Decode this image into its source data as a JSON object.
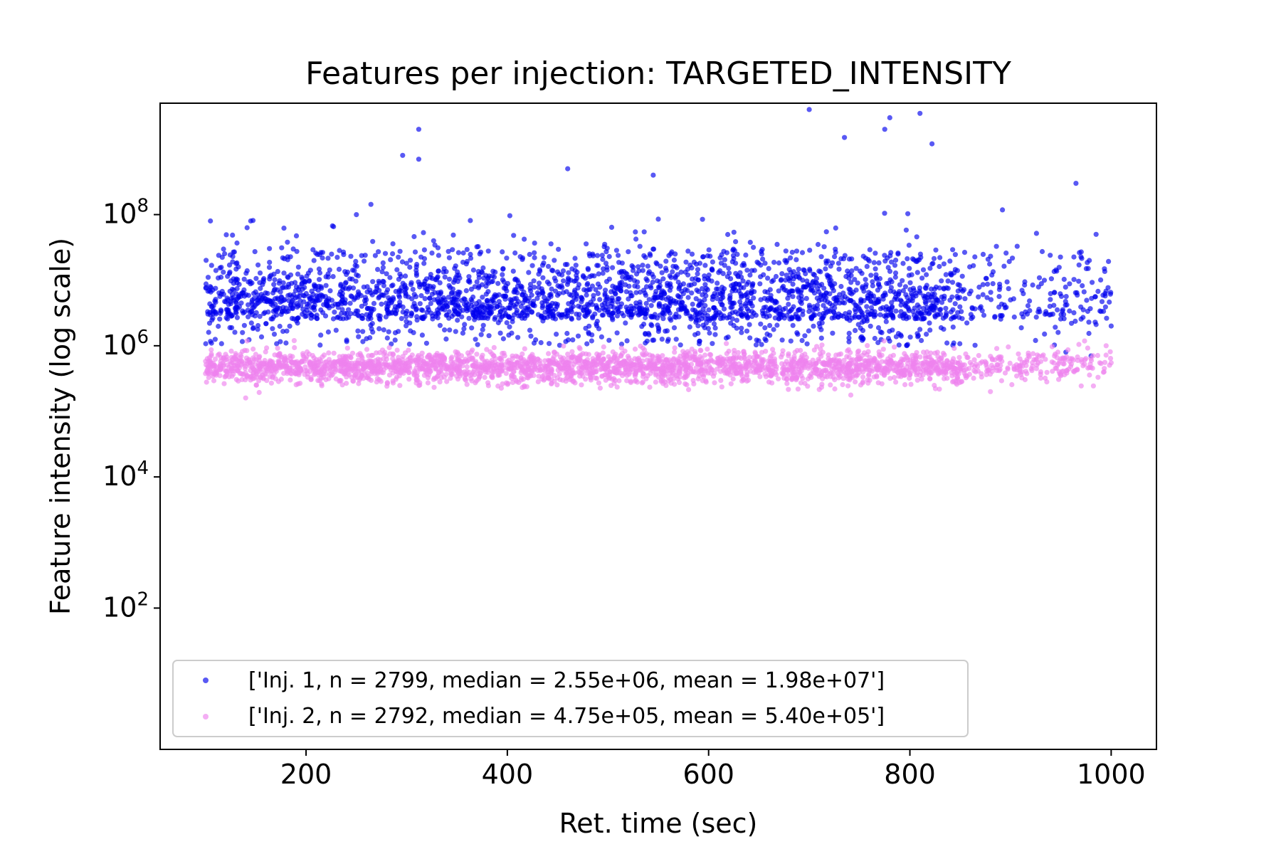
{
  "chart_data": {
    "type": "scatter",
    "title": "Features per injection: TARGETED_INTENSITY",
    "xlabel": "Ret. time (sec)",
    "ylabel": "Feature intensity (log scale)",
    "xlim": [
      55,
      1045
    ],
    "ylim": [
      0.7,
      5000000000
    ],
    "yscale": "log",
    "xticks": [
      200,
      400,
      600,
      800,
      1000
    ],
    "xtick_labels": [
      "200",
      "400",
      "600",
      "800",
      "1000"
    ],
    "yticks": [
      100,
      10000,
      1000000,
      100000000
    ],
    "ytick_labels": [
      {
        "base": "10",
        "exp": "2"
      },
      {
        "base": "10",
        "exp": "4"
      },
      {
        "base": "10",
        "exp": "6"
      },
      {
        "base": "10",
        "exp": "8"
      }
    ],
    "grid": false,
    "legend_position": "lower-left",
    "series": [
      {
        "name": "['Inj. 1, n = 2799, median = 2.55e+06, mean = 1.98e+07']",
        "color": "#0000ee",
        "n": 2799,
        "median": 2550000,
        "mean": 19800000,
        "x_range": [
          100,
          1000
        ],
        "typical_range": [
          1000000,
          30000000
        ],
        "sample_points": [
          [
            700,
            4000000000
          ],
          [
            780,
            3000000000
          ],
          [
            810,
            3500000000
          ],
          [
            312,
            2000000000
          ],
          [
            735,
            1500000000
          ],
          [
            775,
            2000000000
          ],
          [
            822,
            1200000000
          ],
          [
            296,
            800000000
          ],
          [
            312,
            700000000
          ],
          [
            460,
            500000000
          ],
          [
            545,
            400000000
          ],
          [
            965,
            300000000
          ],
          [
            985,
            50000000
          ],
          [
            105,
            80000000
          ],
          [
            145,
            80000000
          ],
          [
            250,
            100000000
          ],
          [
            900,
            5000000
          ],
          [
            940,
            3000000
          ],
          [
            955,
            800000
          ],
          [
            980,
            700000
          ],
          [
            1000,
            2000000
          ]
        ]
      },
      {
        "name": "['Inj. 2, n = 2792, median = 4.75e+05, mean = 5.40e+05']",
        "color": "#ee82ee",
        "n": 2792,
        "median": 475000,
        "mean": 540000,
        "x_range": [
          100,
          1000
        ],
        "typical_range": [
          250000,
          1200000
        ],
        "sample_points": [
          [
            140,
            160000
          ],
          [
            880,
            200000
          ],
          [
            890,
            500000
          ],
          [
            910,
            500000
          ],
          [
            930,
            400000
          ],
          [
            950,
            350000
          ],
          [
            995,
            1000000
          ],
          [
            1000,
            550000
          ]
        ]
      }
    ]
  }
}
